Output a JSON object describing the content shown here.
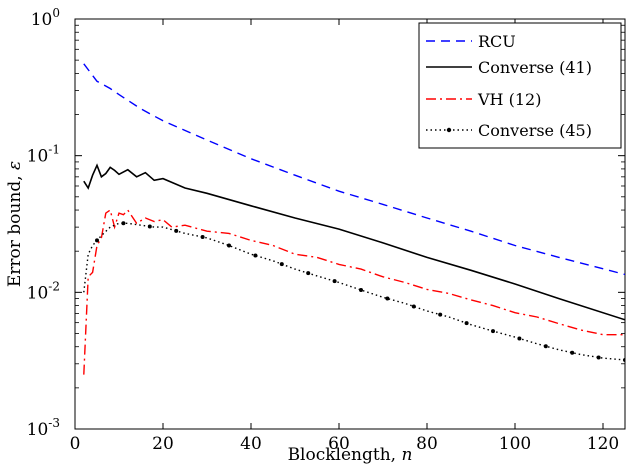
{
  "chart_data": {
    "type": "line",
    "title": "",
    "xlabel": "Blocklength, ",
    "xlabel_var": "n",
    "ylabel": "Error bound, ",
    "ylabel_var": "ε",
    "xlim": [
      0,
      125
    ],
    "ylim": [
      0.001,
      1
    ],
    "yscale": "log",
    "grid": false,
    "legend_position": "top-right",
    "x_ticks": [
      "0",
      "20",
      "40",
      "60",
      "80",
      "100",
      "120"
    ],
    "y_ticks": [
      {
        "base": "10",
        "exp": "-3"
      },
      {
        "base": "10",
        "exp": "-2"
      },
      {
        "base": "10",
        "exp": "-1"
      },
      {
        "base": "10",
        "exp": "0"
      }
    ],
    "series": [
      {
        "name": "RCU",
        "color": "#0000ff",
        "style": "dashed",
        "x": [
          2,
          5,
          8,
          10,
          15,
          20,
          30,
          40,
          50,
          60,
          70,
          80,
          90,
          100,
          110,
          125
        ],
        "y": [
          0.47,
          0.35,
          0.31,
          0.28,
          0.22,
          0.18,
          0.13,
          0.095,
          0.072,
          0.055,
          0.044,
          0.035,
          0.028,
          0.022,
          0.018,
          0.0135
        ]
      },
      {
        "name": "Converse (41)",
        "color": "#000000",
        "style": "solid",
        "x": [
          2,
          3,
          4,
          5,
          6,
          7,
          8,
          9,
          10,
          12,
          14,
          16,
          18,
          20,
          25,
          30,
          40,
          50,
          60,
          70,
          80,
          90,
          100,
          110,
          125
        ],
        "y": [
          0.065,
          0.058,
          0.072,
          0.085,
          0.07,
          0.074,
          0.082,
          0.078,
          0.073,
          0.079,
          0.07,
          0.075,
          0.066,
          0.068,
          0.058,
          0.053,
          0.043,
          0.035,
          0.029,
          0.023,
          0.018,
          0.0145,
          0.0115,
          0.009,
          0.0063
        ]
      },
      {
        "name": "VH (12)",
        "color": "#ff0000",
        "style": "dashdot",
        "x": [
          2,
          3,
          4,
          5,
          6,
          7,
          8,
          9,
          10,
          11,
          12,
          14,
          16,
          18,
          20,
          22,
          25,
          30,
          35,
          40,
          45,
          50,
          55,
          60,
          65,
          70,
          75,
          80,
          85,
          90,
          95,
          100,
          105,
          110,
          115,
          120,
          125
        ],
        "y": [
          0.0025,
          0.013,
          0.014,
          0.022,
          0.025,
          0.038,
          0.04,
          0.03,
          0.038,
          0.037,
          0.04,
          0.032,
          0.035,
          0.033,
          0.034,
          0.03,
          0.031,
          0.028,
          0.027,
          0.024,
          0.022,
          0.019,
          0.018,
          0.016,
          0.0148,
          0.013,
          0.0118,
          0.0105,
          0.0098,
          0.0088,
          0.008,
          0.0071,
          0.0066,
          0.0059,
          0.0053,
          0.0049,
          0.0049
        ]
      },
      {
        "name": "Converse (45)",
        "color": "#000000",
        "style": "dotted",
        "x": [
          2,
          3,
          4,
          5,
          6,
          8,
          10,
          12,
          15,
          18,
          20,
          25,
          30,
          35,
          40,
          45,
          50,
          55,
          60,
          65,
          70,
          75,
          80,
          85,
          90,
          95,
          100,
          105,
          110,
          115,
          120,
          125
        ],
        "y": [
          0.01,
          0.019,
          0.022,
          0.024,
          0.026,
          0.03,
          0.032,
          0.032,
          0.031,
          0.03,
          0.03,
          0.027,
          0.025,
          0.022,
          0.019,
          0.017,
          0.0148,
          0.0132,
          0.0118,
          0.0104,
          0.0092,
          0.0083,
          0.0073,
          0.0066,
          0.0058,
          0.0052,
          0.0047,
          0.0042,
          0.0038,
          0.0035,
          0.0033,
          0.0032
        ]
      }
    ]
  }
}
